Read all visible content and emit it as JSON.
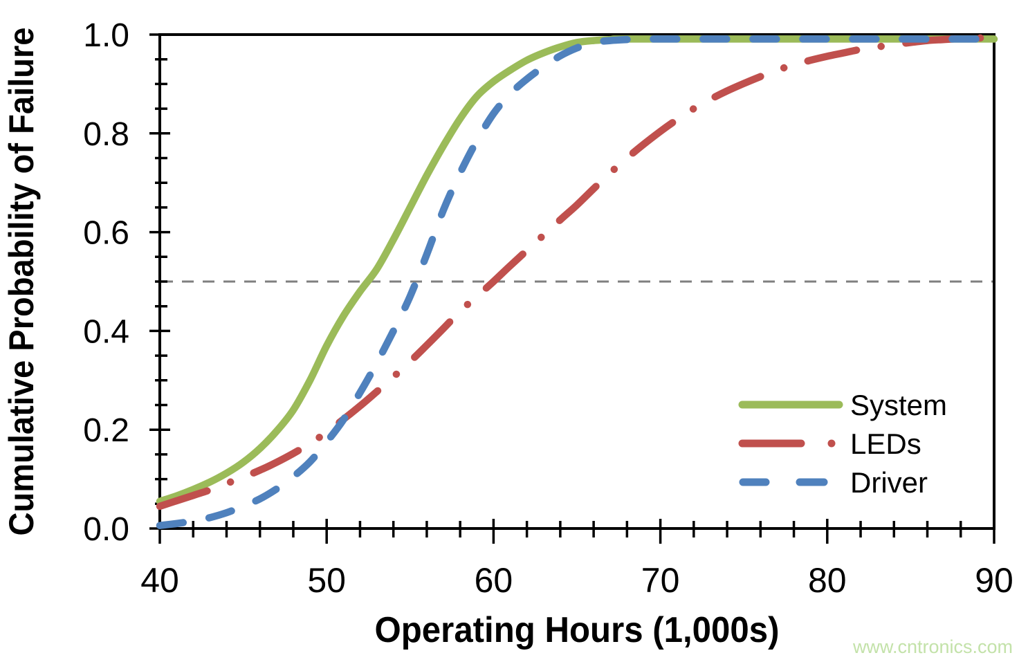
{
  "chart_data": {
    "type": "line",
    "title": "",
    "xlabel": "Operating Hours (1,000s)",
    "ylabel": "Cumulative Probability of Failure",
    "xlim": [
      40,
      90
    ],
    "ylim": [
      0.0,
      1.0
    ],
    "x_ticks": [
      40,
      50,
      60,
      70,
      80,
      90
    ],
    "x_minor_step": 2,
    "y_ticks": [
      0.0,
      0.2,
      0.4,
      0.6,
      0.8,
      1.0
    ],
    "y_tick_labels": [
      "0.0",
      "0.2",
      "0.4",
      "0.6",
      "0.8",
      "1.0"
    ],
    "y_minor_step": 0.05,
    "grid": "off",
    "axis_color": "#000000",
    "reference_line": {
      "y": 0.5,
      "style": "dashed",
      "color": "#7f7f7f"
    },
    "legend": {
      "position": "inside-right-center",
      "border": "none"
    },
    "series": [
      {
        "name": "System",
        "color": "#9BBB59",
        "line_style": "solid",
        "points": [
          [
            40,
            0.055
          ],
          [
            41,
            0.066
          ],
          [
            42,
            0.079
          ],
          [
            43,
            0.094
          ],
          [
            44,
            0.112
          ],
          [
            45,
            0.134
          ],
          [
            46,
            0.162
          ],
          [
            47,
            0.197
          ],
          [
            48,
            0.24
          ],
          [
            49,
            0.3
          ],
          [
            50,
            0.37
          ],
          [
            51,
            0.43
          ],
          [
            52,
            0.48
          ],
          [
            53,
            0.525
          ],
          [
            54,
            0.585
          ],
          [
            55,
            0.65
          ],
          [
            56,
            0.715
          ],
          [
            57,
            0.775
          ],
          [
            58,
            0.83
          ],
          [
            59,
            0.875
          ],
          [
            60,
            0.905
          ],
          [
            61,
            0.928
          ],
          [
            62,
            0.948
          ],
          [
            63,
            0.963
          ],
          [
            64,
            0.975
          ],
          [
            65,
            0.984
          ],
          [
            66,
            0.988
          ],
          [
            67,
            0.99
          ],
          [
            68,
            0.991
          ],
          [
            75,
            0.991
          ],
          [
            82,
            0.991
          ],
          [
            90,
            0.991
          ]
        ]
      },
      {
        "name": "LEDs",
        "color": "#C0504D",
        "line_style": "dash-dot",
        "points": [
          [
            40,
            0.045
          ],
          [
            41,
            0.056
          ],
          [
            42,
            0.067
          ],
          [
            43,
            0.078
          ],
          [
            44,
            0.091
          ],
          [
            45,
            0.104
          ],
          [
            46,
            0.118
          ],
          [
            47,
            0.134
          ],
          [
            48,
            0.152
          ],
          [
            49,
            0.172
          ],
          [
            50,
            0.195
          ],
          [
            51,
            0.221
          ],
          [
            52,
            0.248
          ],
          [
            53,
            0.277
          ],
          [
            54,
            0.307
          ],
          [
            55,
            0.338
          ],
          [
            56,
            0.371
          ],
          [
            57,
            0.405
          ],
          [
            58,
            0.44
          ],
          [
            59,
            0.47
          ],
          [
            60,
            0.5
          ],
          [
            61,
            0.532
          ],
          [
            62,
            0.563
          ],
          [
            63,
            0.594
          ],
          [
            64,
            0.625
          ],
          [
            65,
            0.655
          ],
          [
            66,
            0.688
          ],
          [
            67,
            0.72
          ],
          [
            68,
            0.75
          ],
          [
            69,
            0.778
          ],
          [
            70,
            0.804
          ],
          [
            71,
            0.828
          ],
          [
            72,
            0.85
          ],
          [
            73,
            0.869
          ],
          [
            74,
            0.886
          ],
          [
            75,
            0.901
          ],
          [
            76,
            0.915
          ],
          [
            77,
            0.928
          ],
          [
            78,
            0.939
          ],
          [
            79,
            0.948
          ],
          [
            80,
            0.956
          ],
          [
            81,
            0.963
          ],
          [
            82,
            0.97
          ],
          [
            83,
            0.975
          ],
          [
            84,
            0.98
          ],
          [
            85,
            0.984
          ],
          [
            86,
            0.988
          ],
          [
            87,
            0.99
          ],
          [
            88,
            0.992
          ],
          [
            89,
            0.993
          ],
          [
            90,
            0.994
          ]
        ]
      },
      {
        "name": "Driver",
        "color": "#4F81BD",
        "line_style": "dashed",
        "points": [
          [
            40,
            0.006
          ],
          [
            41,
            0.01
          ],
          [
            42,
            0.015
          ],
          [
            43,
            0.022
          ],
          [
            44,
            0.032
          ],
          [
            45,
            0.045
          ],
          [
            46,
            0.06
          ],
          [
            47,
            0.08
          ],
          [
            48,
            0.105
          ],
          [
            49,
            0.135
          ],
          [
            50,
            0.175
          ],
          [
            51,
            0.22
          ],
          [
            52,
            0.275
          ],
          [
            53,
            0.335
          ],
          [
            54,
            0.4
          ],
          [
            55,
            0.47
          ],
          [
            56,
            0.555
          ],
          [
            57,
            0.645
          ],
          [
            58,
            0.72
          ],
          [
            59,
            0.785
          ],
          [
            60,
            0.84
          ],
          [
            61,
            0.88
          ],
          [
            62,
            0.91
          ],
          [
            63,
            0.935
          ],
          [
            64,
            0.957
          ],
          [
            65,
            0.973
          ],
          [
            66,
            0.984
          ],
          [
            67,
            0.988
          ],
          [
            68,
            0.99
          ],
          [
            69,
            0.991
          ],
          [
            76,
            0.991
          ],
          [
            83,
            0.991
          ],
          [
            90,
            0.991
          ]
        ]
      }
    ]
  },
  "watermark": {
    "text": "www.cntronics.com",
    "color": "#c3e2a9"
  }
}
